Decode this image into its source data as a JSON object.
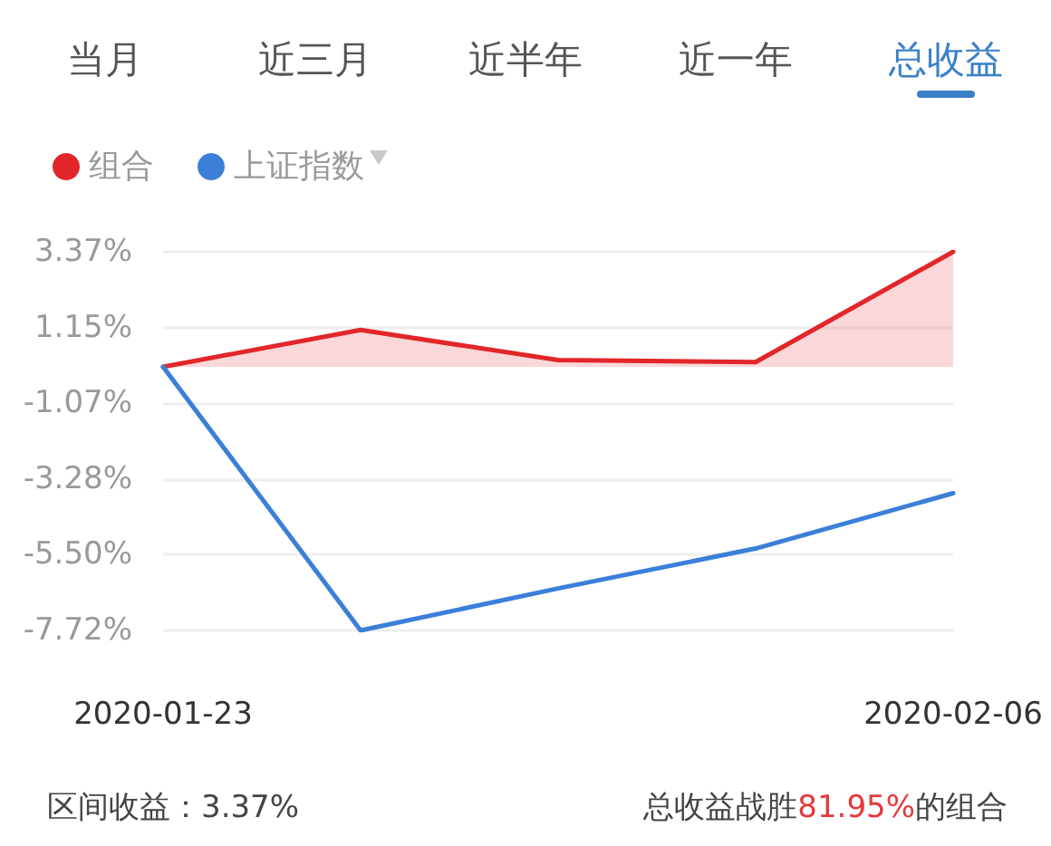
{
  "chart_data": {
    "type": "line",
    "categories": [
      "2020-01-23",
      null,
      null,
      null,
      "2020-02-06"
    ],
    "series": [
      {
        "name": "组合",
        "type": "area",
        "color": "#e2262a",
        "values": [
          0,
          1.08,
          0.2,
          0.14,
          3.37
        ]
      },
      {
        "name": "上证指数",
        "color": "#3b7fd9",
        "values": [
          0,
          -7.72,
          -6.49,
          -5.32,
          -3.7
        ]
      }
    ],
    "ylim": [
      -7.72,
      3.37
    ],
    "yticks": [
      {
        "value": -7.72,
        "label": "-7.72%"
      },
      {
        "value": -5.5,
        "label": "-5.50%"
      },
      {
        "value": -3.28,
        "label": "-3.28%"
      },
      {
        "value": -1.07,
        "label": "-1.07%"
      },
      {
        "value": 1.15,
        "label": "1.15%"
      },
      {
        "value": 3.37,
        "label": "3.37%"
      }
    ],
    "grid": "y",
    "legend": "top left",
    "marker": "none",
    "annotations": [
      "当月",
      "近三月",
      "近半年",
      "近一年",
      "总收益",
      "区间收益：3.37%",
      "总收益战胜81.95%的组合"
    ]
  }
}
